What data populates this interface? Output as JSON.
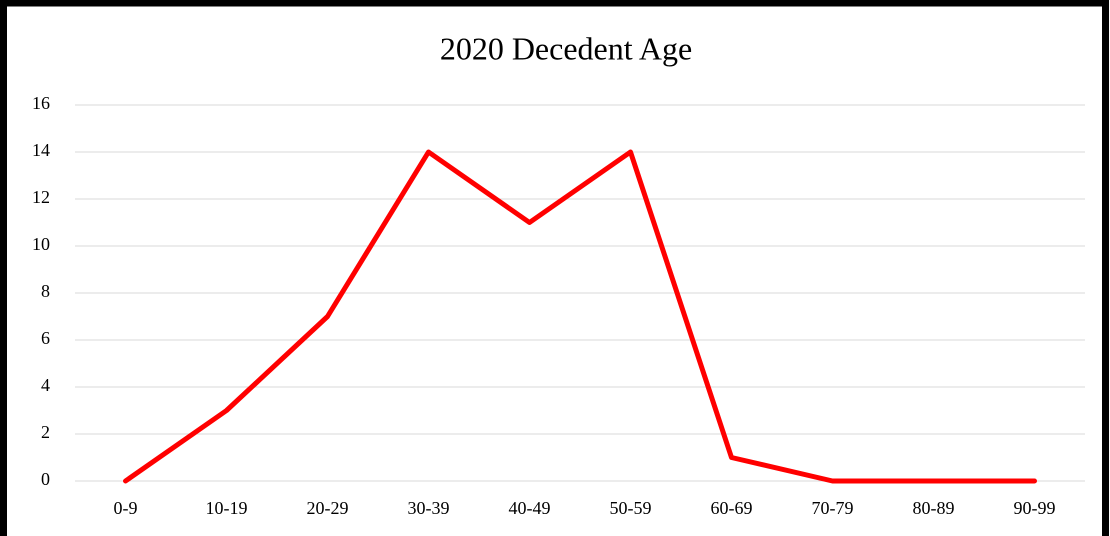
{
  "chart_data": {
    "type": "line",
    "title": "2020 Decedent Age",
    "categories": [
      "0-9",
      "10-19",
      "20-29",
      "30-39",
      "40-49",
      "50-59",
      "60-69",
      "70-79",
      "80-89",
      "90-99"
    ],
    "values": [
      0,
      3,
      7,
      14,
      11,
      14,
      1,
      0,
      0,
      0
    ],
    "color": "#ff0000",
    "ylim": [
      0,
      16
    ],
    "yticks": [
      0,
      2,
      4,
      6,
      8,
      10,
      12,
      14,
      16
    ],
    "grid": true
  }
}
